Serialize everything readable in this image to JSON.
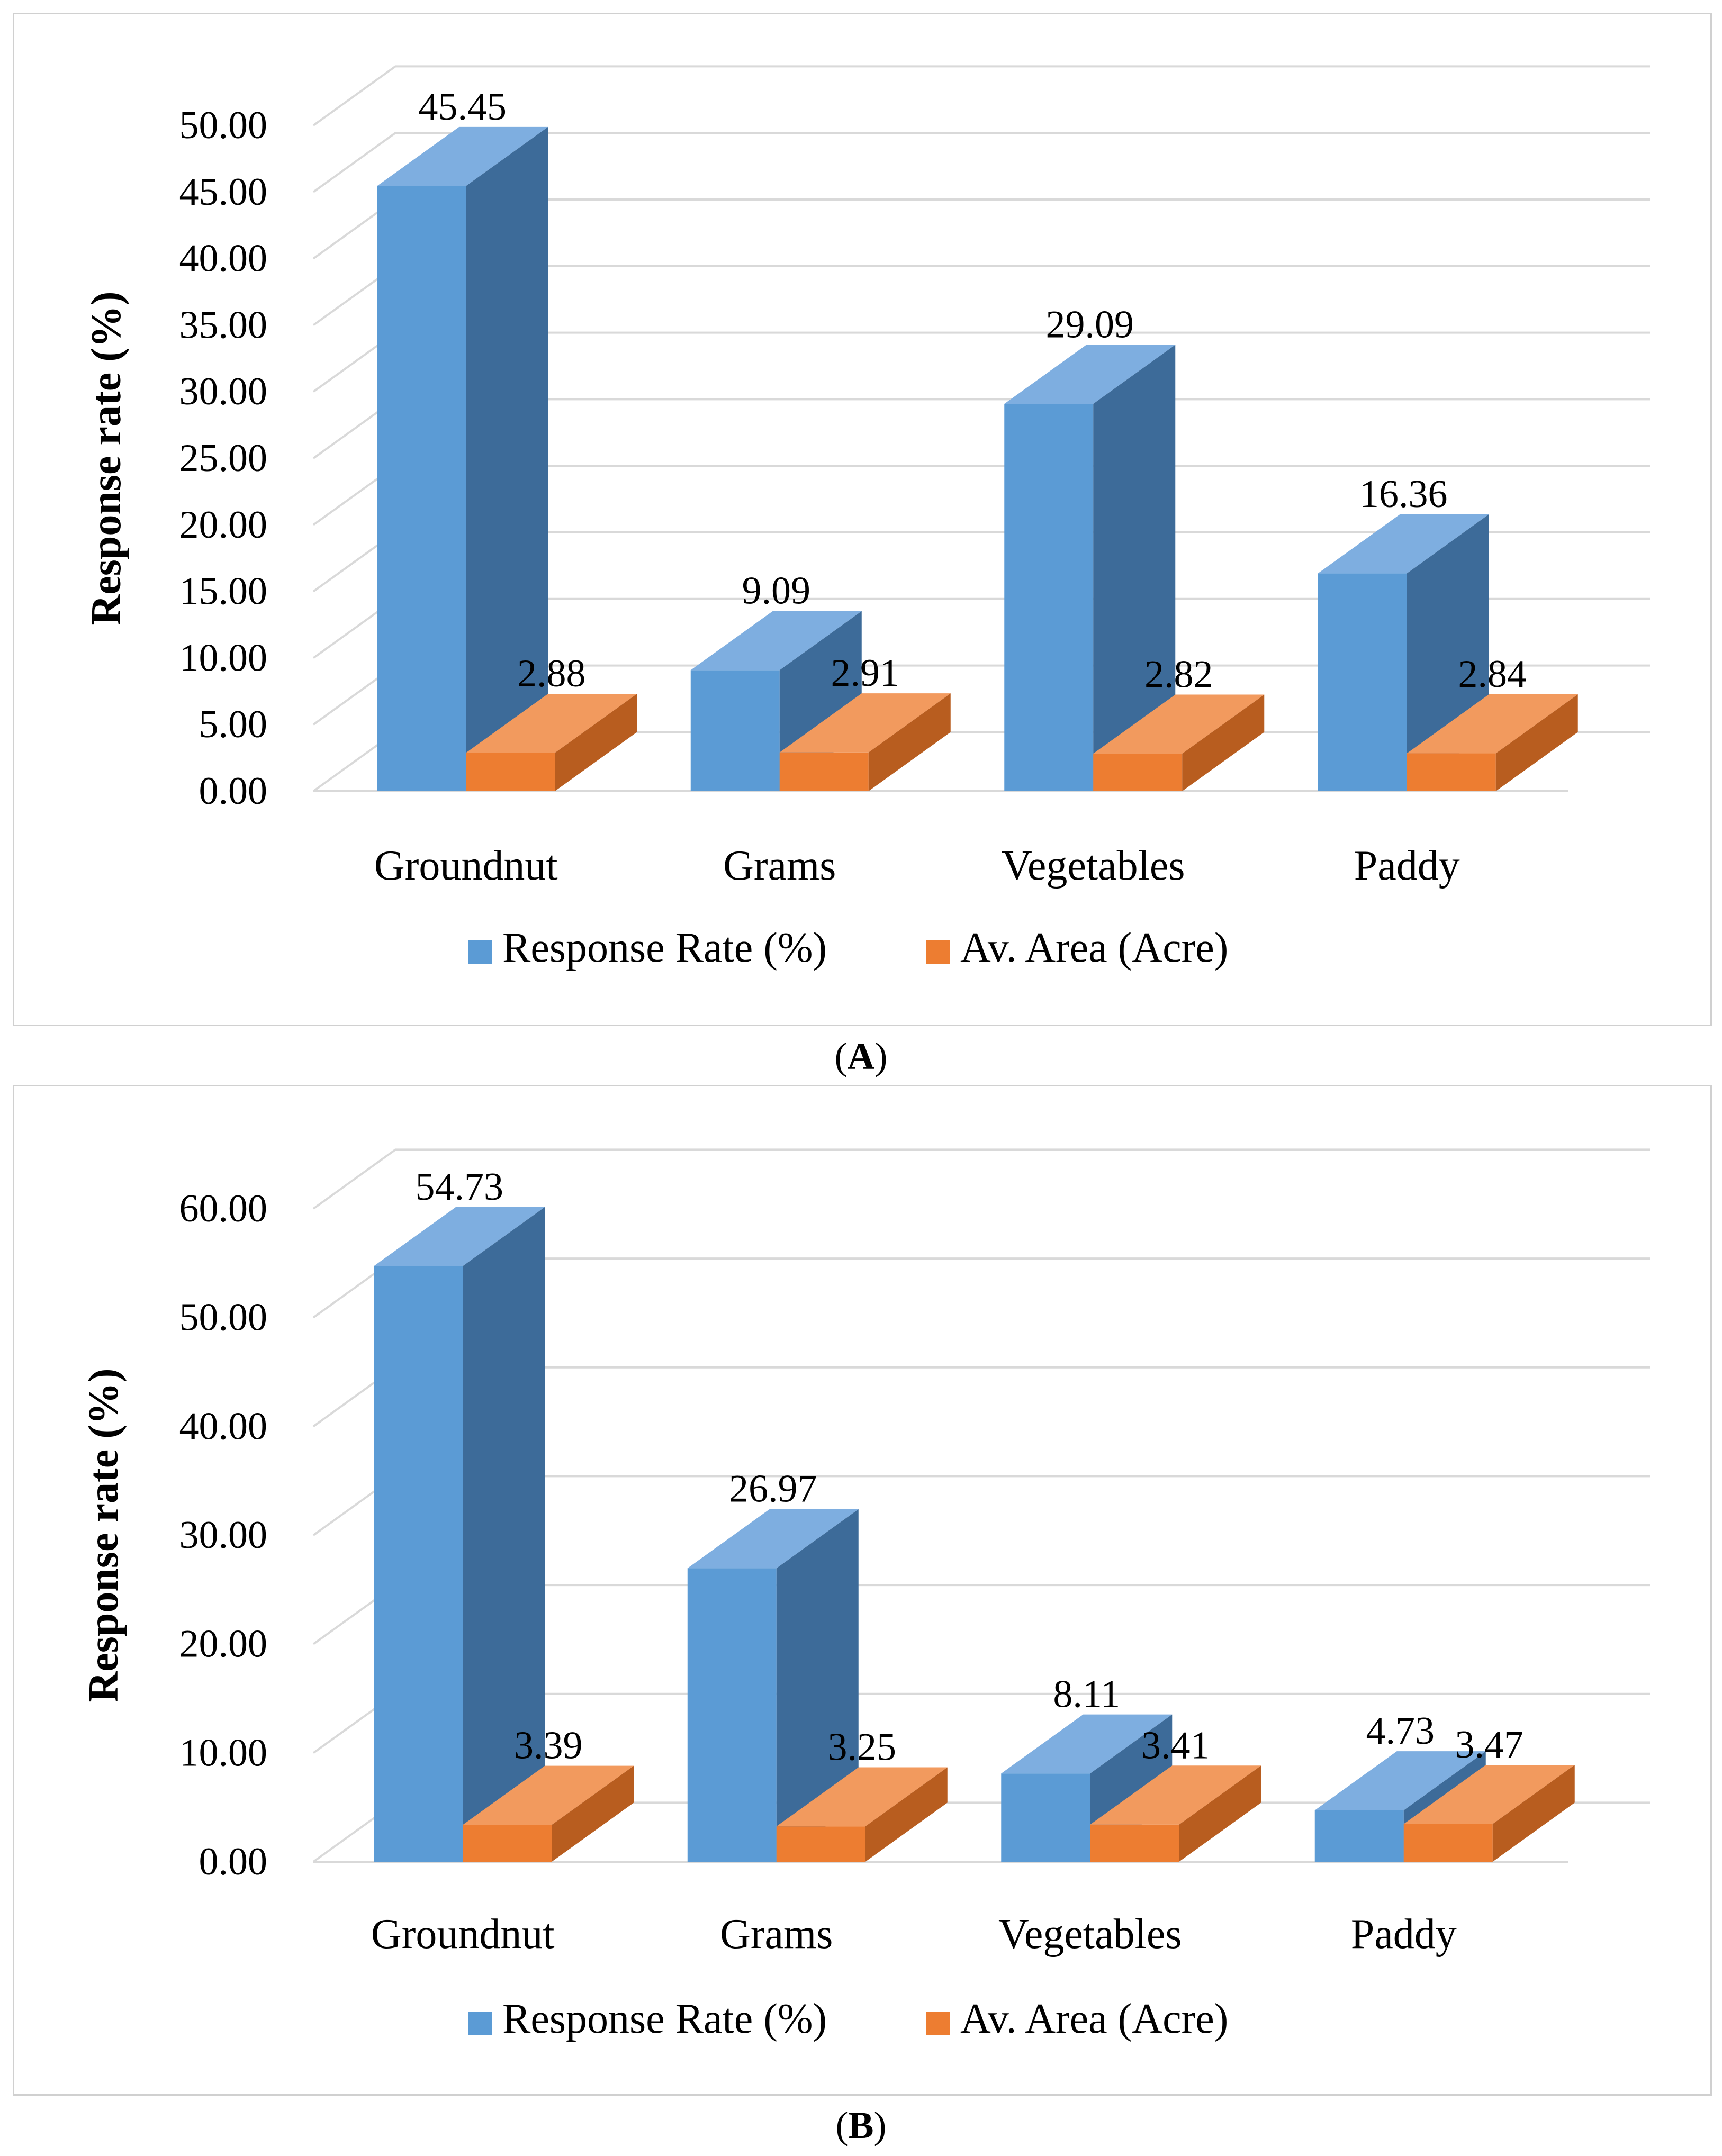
{
  "chart_data": [
    {
      "type": "bar",
      "panel_label": "A",
      "categories": [
        "Groundnut",
        "Grams",
        "Vegetables",
        "Paddy"
      ],
      "series": [
        {
          "name": "Response Rate (%)",
          "values": [
            45.45,
            9.09,
            29.09,
            16.36
          ],
          "color": "#5b9bd5"
        },
        {
          "name": "Av. Area (Acre)",
          "values": [
            2.88,
            2.91,
            2.82,
            2.84
          ],
          "color": "#ed7d31"
        }
      ],
      "data_labels": {
        "s0": [
          "45.45",
          "9.09",
          "29.09",
          "16.36"
        ],
        "s1": [
          "2.88",
          "2.91",
          "2.82",
          "2.84"
        ]
      },
      "yticks": [
        "0.00",
        "5.00",
        "10.00",
        "15.00",
        "20.00",
        "25.00",
        "30.00",
        "35.00",
        "40.00",
        "45.00",
        "50.00"
      ],
      "ylim": [
        0,
        50
      ],
      "ystep": 5,
      "ylabel": "Response rate (%)",
      "xlabel": "",
      "legend": "bottom"
    },
    {
      "type": "bar",
      "panel_label": "B",
      "categories": [
        "Groundnut",
        "Grams",
        "Vegetables",
        "Paddy"
      ],
      "series": [
        {
          "name": "Response Rate (%)",
          "values": [
            54.73,
            26.97,
            8.11,
            4.73
          ],
          "color": "#5b9bd5"
        },
        {
          "name": "Av. Area (Acre)",
          "values": [
            3.39,
            3.25,
            3.41,
            3.47
          ],
          "color": "#ed7d31"
        }
      ],
      "data_labels": {
        "s0": [
          "54.73",
          "26.97",
          "8.11",
          "4.73"
        ],
        "s1": [
          "3.39",
          "3.25",
          "3.41",
          "3.47"
        ]
      },
      "yticks": [
        "0.00",
        "10.00",
        "20.00",
        "30.00",
        "40.00",
        "50.00",
        "60.00"
      ],
      "ylim": [
        0,
        60
      ],
      "ystep": 10,
      "ylabel": "Response rate (%)",
      "xlabel": "",
      "legend": "bottom"
    }
  ],
  "captions": {
    "a": "A",
    "b": "B"
  },
  "colors": {
    "blue_front": "#5b9bd5",
    "blue_top": "#7eaee0",
    "blue_side": "#3d6b99",
    "orange_front": "#ed7d31",
    "orange_top": "#f29a5e",
    "orange_side": "#b85d1f",
    "grid": "#d9d9d9"
  }
}
